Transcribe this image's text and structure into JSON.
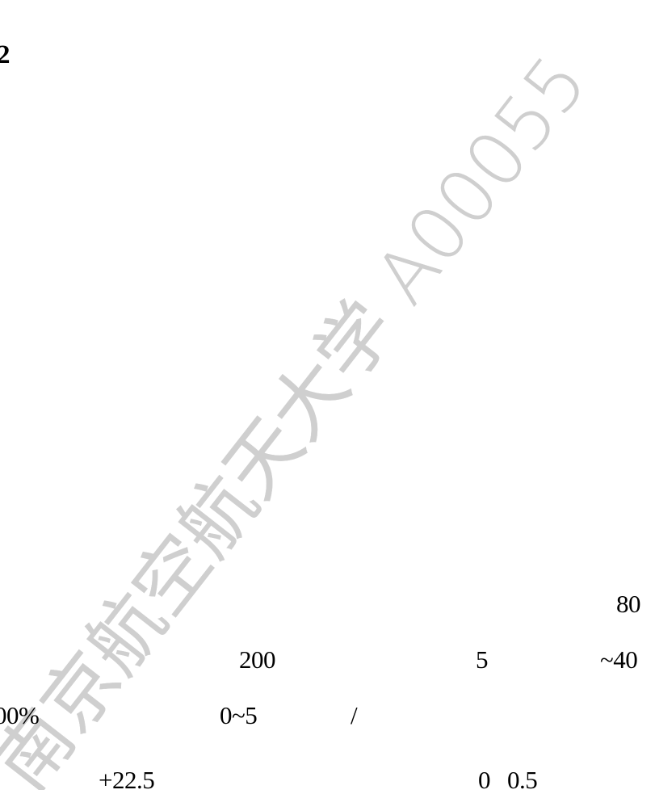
{
  "section_number": "2",
  "watermark": {
    "text": "南京航空航天大学 A00055",
    "color": "#cfcfcf"
  },
  "body_text": {
    "line1": [
      "80"
    ],
    "line2": [
      "200",
      "5",
      "~40"
    ],
    "line3": [
      "00%",
      "0~5",
      "/"
    ],
    "line4": [
      "+22.5",
      "0",
      "0.5"
    ]
  }
}
